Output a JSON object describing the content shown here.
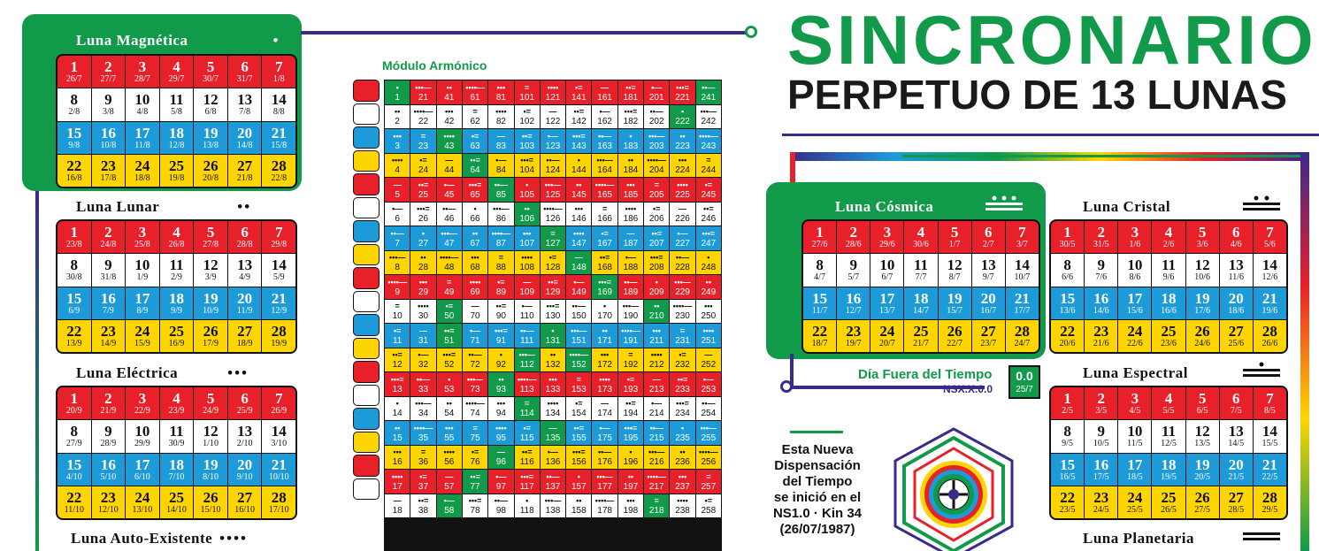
{
  "header": {
    "title": "SINCRONARIO",
    "subtitle": "PERPETUO DE 13 LUNAS"
  },
  "harmonic_module": {
    "title": "Módulo Armónico",
    "rows": [
      [
        1,
        21,
        41,
        61,
        81,
        101,
        121,
        141,
        161,
        181,
        201,
        221,
        241
      ],
      [
        2,
        22,
        42,
        62,
        82,
        102,
        122,
        142,
        162,
        182,
        202,
        222,
        242
      ],
      [
        3,
        23,
        43,
        63,
        83,
        103,
        123,
        143,
        163,
        183,
        203,
        223,
        243
      ],
      [
        4,
        24,
        44,
        64,
        84,
        104,
        124,
        144,
        164,
        184,
        204,
        224,
        244
      ],
      [
        5,
        25,
        45,
        65,
        85,
        105,
        125,
        145,
        165,
        185,
        205,
        225,
        245
      ],
      [
        6,
        26,
        46,
        66,
        86,
        106,
        126,
        146,
        166,
        186,
        206,
        226,
        246
      ],
      [
        7,
        27,
        47,
        67,
        87,
        107,
        127,
        147,
        167,
        187,
        207,
        227,
        247
      ],
      [
        8,
        28,
        48,
        68,
        88,
        108,
        128,
        148,
        168,
        188,
        208,
        228,
        248
      ],
      [
        9,
        29,
        49,
        69,
        89,
        109,
        129,
        149,
        169,
        189,
        209,
        229,
        249
      ],
      [
        10,
        30,
        50,
        70,
        90,
        110,
        130,
        150,
        170,
        190,
        210,
        230,
        250
      ],
      [
        11,
        31,
        51,
        71,
        91,
        111,
        131,
        151,
        171,
        191,
        211,
        231,
        251
      ],
      [
        12,
        32,
        52,
        72,
        92,
        112,
        132,
        152,
        172,
        192,
        212,
        232,
        252
      ],
      [
        13,
        33,
        53,
        73,
        93,
        113,
        133,
        153,
        173,
        193,
        213,
        233,
        253
      ],
      [
        14,
        34,
        54,
        74,
        94,
        114,
        134,
        154,
        174,
        194,
        214,
        234,
        254
      ],
      [
        15,
        35,
        55,
        75,
        95,
        115,
        135,
        155,
        175,
        195,
        215,
        235,
        255
      ],
      [
        16,
        36,
        56,
        76,
        96,
        116,
        136,
        156,
        176,
        196,
        216,
        236,
        256
      ],
      [
        17,
        37,
        57,
        77,
        97,
        117,
        137,
        157,
        177,
        197,
        217,
        237,
        257
      ],
      [
        18,
        38,
        58,
        78,
        98,
        118,
        138,
        158,
        178,
        198,
        218,
        238,
        258
      ]
    ],
    "row_colors": [
      "red",
      "white",
      "blue",
      "yellow",
      "red",
      "white",
      "blue",
      "yellow",
      "red",
      "white",
      "blue",
      "yellow",
      "red",
      "white",
      "blue",
      "yellow",
      "red",
      "white"
    ],
    "green_cells": [
      [
        0,
        0
      ],
      [
        0,
        12
      ],
      [
        1,
        11
      ],
      [
        2,
        2
      ],
      [
        3,
        3
      ],
      [
        4,
        4
      ],
      [
        5,
        5
      ],
      [
        6,
        6
      ],
      [
        7,
        7
      ],
      [
        8,
        8
      ],
      [
        9,
        2
      ],
      [
        9,
        10
      ],
      [
        10,
        2
      ],
      [
        10,
        6
      ],
      [
        11,
        7
      ],
      [
        11,
        5
      ],
      [
        12,
        4
      ],
      [
        13,
        5
      ],
      [
        14,
        6
      ],
      [
        15,
        4
      ],
      [
        16,
        3
      ],
      [
        17,
        2
      ],
      [
        17,
        10
      ]
    ]
  },
  "moons": [
    {
      "id": "magnetica",
      "name": "Luna Magnética",
      "tone_dots": "•",
      "dates": [
        "26/7",
        "27/7",
        "28/7",
        "29/7",
        "30/7",
        "31/7",
        "1/8",
        "2/8",
        "3/8",
        "4/8",
        "5/8",
        "6/8",
        "7/8",
        "8/8",
        "9/8",
        "10/8",
        "11/8",
        "12/8",
        "13/8",
        "14/8",
        "15/8",
        "16/8",
        "17/8",
        "18/8",
        "19/8",
        "20/8",
        "21/8",
        "22/8"
      ]
    },
    {
      "id": "lunar",
      "name": "Luna Lunar",
      "tone_dots": "••",
      "dates": [
        "23/8",
        "24/8",
        "25/8",
        "26/8",
        "27/8",
        "28/8",
        "29/8",
        "30/8",
        "31/8",
        "1/9",
        "2/9",
        "3/9",
        "4/9",
        "5/9",
        "6/9",
        "7/9",
        "8/9",
        "9/9",
        "10/9",
        "11/9",
        "12/9",
        "13/9",
        "14/9",
        "15/9",
        "16/9",
        "17/9",
        "18/9",
        "19/9"
      ]
    },
    {
      "id": "electrica",
      "name": "Luna Eléctrica",
      "tone_dots": "•••",
      "dates": [
        "20/9",
        "21/9",
        "22/9",
        "23/9",
        "24/9",
        "25/9",
        "26/9",
        "27/9",
        "28/9",
        "29/9",
        "30/9",
        "1/10",
        "2/10",
        "3/10",
        "4/10",
        "5/10",
        "6/10",
        "7/10",
        "8/10",
        "9/10",
        "10/10",
        "11/10",
        "12/10",
        "13/10",
        "14/10",
        "15/10",
        "16/10",
        "17/10"
      ]
    },
    {
      "id": "cosmica",
      "name": "Luna Cósmica",
      "tone_dots": "",
      "dates": [
        "27/6",
        "28/6",
        "29/6",
        "30/6",
        "1/7",
        "2/7",
        "3/7",
        "4/7",
        "5/7",
        "6/7",
        "7/7",
        "8/7",
        "9/7",
        "10/7",
        "11/7",
        "12/7",
        "13/7",
        "14/7",
        "15/7",
        "16/7",
        "17/7",
        "18/7",
        "19/7",
        "20/7",
        "21/7",
        "22/7",
        "23/7",
        "24/7"
      ]
    },
    {
      "id": "cristal",
      "name": "Luna Cristal",
      "tone_dots": "",
      "dates": [
        "30/5",
        "31/5",
        "1/6",
        "2/6",
        "3/6",
        "4/6",
        "5/6",
        "6/6",
        "7/6",
        "8/6",
        "9/6",
        "10/6",
        "11/6",
        "12/6",
        "13/6",
        "14/6",
        "15/6",
        "16/6",
        "17/6",
        "18/6",
        "19/6",
        "20/6",
        "21/6",
        "22/6",
        "23/6",
        "24/6",
        "25/6",
        "26/6"
      ]
    },
    {
      "id": "espectral",
      "name": "Luna Espectral",
      "tone_dots": "",
      "dates": [
        "2/5",
        "3/5",
        "4/5",
        "5/5",
        "6/5",
        "7/5",
        "8/5",
        "9/5",
        "10/5",
        "11/5",
        "12/5",
        "13/5",
        "14/5",
        "15/5",
        "16/5",
        "17/5",
        "18/5",
        "19/5",
        "20/5",
        "21/5",
        "22/5",
        "23/5",
        "24/5",
        "25/5",
        "26/5",
        "27/5",
        "28/5",
        "29/5"
      ]
    }
  ],
  "labels": {
    "auto_existente": "Luna Auto-Existente",
    "auto_existente_dots": "••••",
    "planetaria": "Luna Planetaria"
  },
  "out_of_time": {
    "label": "Día Fuera del Tiempo",
    "code": "NSX.X.0.0",
    "value": "0.0",
    "date": "25/7"
  },
  "dispensation": {
    "lines": [
      "Esta Nueva",
      "Dispensación",
      "del Tiempo",
      "se inició en el",
      "NS1.0 · Kin 34",
      "(26/07/1987)"
    ]
  },
  "colors": {
    "red": "#e8202a",
    "white": "#ffffff",
    "blue": "#1d9bd8",
    "yellow": "#ffd500",
    "green": "#119a49",
    "purple": "#3a2a8a"
  }
}
